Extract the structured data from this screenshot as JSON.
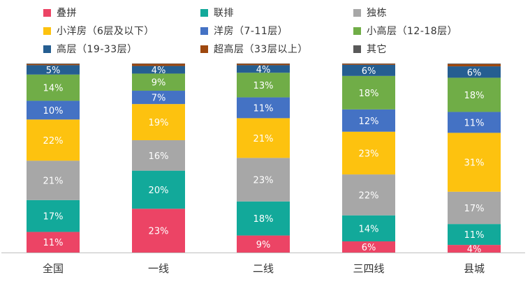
{
  "chart_data": {
    "type": "bar",
    "stacked": true,
    "normalized": true,
    "categories": [
      "全国",
      "一线",
      "二线",
      "三四线",
      "县城"
    ],
    "value_unit": "%",
    "series": [
      {
        "name": "叠拼",
        "color": "#EC4465",
        "values": [
          11,
          23,
          9,
          6,
          4
        ]
      },
      {
        "name": "联排",
        "color": "#12A99A",
        "values": [
          17,
          20,
          18,
          14,
          11
        ]
      },
      {
        "name": "独栋",
        "color": "#A7A7A7",
        "values": [
          21,
          16,
          23,
          22,
          17
        ]
      },
      {
        "name": "小洋房（6层及以下）",
        "color": "#FDC20F",
        "values": [
          22,
          19,
          21,
          23,
          31
        ]
      },
      {
        "name": "洋房（7-11层）",
        "color": "#4472C4",
        "values": [
          10,
          7,
          11,
          12,
          11
        ]
      },
      {
        "name": "小高层（12-18层）",
        "color": "#70AD47",
        "values": [
          14,
          9,
          13,
          18,
          18
        ]
      },
      {
        "name": "高层（19-33层）",
        "color": "#255E91",
        "values": [
          5,
          4,
          4,
          6,
          6
        ]
      },
      {
        "name": "超高层（33层以上）",
        "color": "#9E480E",
        "values": [
          0.6,
          1.1,
          0.7,
          0.5,
          1.2
        ]
      },
      {
        "name": "其它",
        "color": "#595959",
        "values": [
          0.3,
          0.2,
          0.2,
          0.2,
          0.3
        ]
      }
    ],
    "data_labels": [
      [
        "11%",
        "23%",
        "9%",
        "6%",
        "4%"
      ],
      [
        "17%",
        "20%",
        "18%",
        "14%",
        "11%"
      ],
      [
        "21%",
        "16%",
        "23%",
        "22%",
        "17%"
      ],
      [
        "22%",
        "19%",
        "21%",
        "23%",
        "31%"
      ],
      [
        "10%",
        "7%",
        "11%",
        "12%",
        "11%"
      ],
      [
        "14%",
        "9%",
        "13%",
        "18%",
        "18%"
      ],
      [
        "5%",
        "4%",
        "4%",
        "6%",
        "6%"
      ],
      [
        "",
        "",
        "",
        "",
        ""
      ],
      [
        "",
        "",
        "",
        "",
        ""
      ]
    ],
    "legend_position": "top",
    "grid": false,
    "axis_color": "#BFBFBF",
    "label_color": "#ffffff",
    "tick_label_color": "#333333"
  }
}
